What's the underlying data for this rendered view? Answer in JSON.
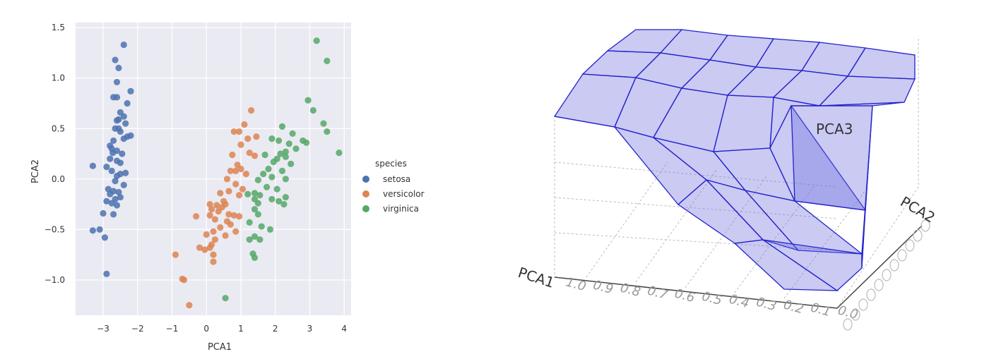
{
  "chart_data": [
    {
      "type": "scatter",
      "xlabel": "PCA1",
      "ylabel": "PCA2",
      "xlim": [
        -3.8,
        4.2
      ],
      "ylim": [
        -1.35,
        1.55
      ],
      "xticks": [
        -3,
        -2,
        -1,
        0,
        1,
        2,
        3,
        4
      ],
      "xtick_labels": [
        "−3",
        "−2",
        "−1",
        "0",
        "1",
        "2",
        "3",
        "4"
      ],
      "yticks": [
        -1.0,
        -0.5,
        0.0,
        0.5,
        1.0,
        1.5
      ],
      "ytick_labels": [
        "−1.0",
        "−0.5",
        "0.0",
        "0.5",
        "1.0",
        "1.5"
      ],
      "grid": true,
      "background": "#eaeaf2",
      "legend": {
        "title": "species",
        "placement": "right"
      },
      "series": [
        {
          "name": "setosa",
          "color": "#4c72b0",
          "points": [
            [
              -2.4,
              1.33
            ],
            [
              -2.65,
              1.18
            ],
            [
              -2.55,
              1.1
            ],
            [
              -2.6,
              0.96
            ],
            [
              -2.2,
              0.87
            ],
            [
              -2.7,
              0.81
            ],
            [
              -2.6,
              0.81
            ],
            [
              -2.3,
              0.75
            ],
            [
              -2.5,
              0.66
            ],
            [
              -2.4,
              0.62
            ],
            [
              -2.55,
              0.59
            ],
            [
              -2.6,
              0.58
            ],
            [
              -2.35,
              0.55
            ],
            [
              -2.65,
              0.5
            ],
            [
              -2.55,
              0.5
            ],
            [
              -2.5,
              0.47
            ],
            [
              -2.3,
              0.42
            ],
            [
              -2.2,
              0.43
            ],
            [
              -2.4,
              0.4
            ],
            [
              -2.7,
              0.38
            ],
            [
              -2.8,
              0.33
            ],
            [
              -2.75,
              0.3
            ],
            [
              -2.6,
              0.28
            ],
            [
              -2.72,
              0.26
            ],
            [
              -2.45,
              0.25
            ],
            [
              -2.8,
              0.2
            ],
            [
              -2.6,
              0.18
            ],
            [
              -2.5,
              0.16
            ],
            [
              -2.9,
              0.12
            ],
            [
              -3.3,
              0.13
            ],
            [
              -2.75,
              0.08
            ],
            [
              -2.35,
              0.06
            ],
            [
              -2.5,
              0.05
            ],
            [
              -2.6,
              0.03
            ],
            [
              -2.65,
              -0.02
            ],
            [
              -2.4,
              -0.06
            ],
            [
              -2.85,
              -0.1
            ],
            [
              -2.7,
              -0.12
            ],
            [
              -2.55,
              -0.13
            ],
            [
              -2.8,
              -0.15
            ],
            [
              -2.5,
              -0.18
            ],
            [
              -2.65,
              -0.2
            ],
            [
              -2.9,
              -0.22
            ],
            [
              -2.75,
              -0.24
            ],
            [
              -2.6,
              -0.26
            ],
            [
              -3.0,
              -0.34
            ],
            [
              -2.7,
              -0.35
            ],
            [
              -3.3,
              -0.51
            ],
            [
              -3.1,
              -0.5
            ],
            [
              -2.95,
              -0.58
            ],
            [
              -2.9,
              -0.94
            ]
          ]
        },
        {
          "name": "versicolor",
          "color": "#dd8452",
          "points": [
            [
              1.3,
              0.68
            ],
            [
              1.1,
              0.54
            ],
            [
              0.95,
              0.47
            ],
            [
              0.8,
              0.47
            ],
            [
              1.45,
              0.42
            ],
            [
              1.2,
              0.4
            ],
            [
              1.0,
              0.34
            ],
            [
              1.25,
              0.26
            ],
            [
              1.4,
              0.23
            ],
            [
              0.75,
              0.24
            ],
            [
              0.9,
              0.14
            ],
            [
              1.0,
              0.1
            ],
            [
              0.85,
              0.08
            ],
            [
              0.7,
              0.08
            ],
            [
              1.15,
              0.05
            ],
            [
              0.6,
              0.0
            ],
            [
              0.85,
              -0.05
            ],
            [
              1.05,
              -0.1
            ],
            [
              0.65,
              -0.12
            ],
            [
              0.4,
              -0.14
            ],
            [
              0.95,
              -0.16
            ],
            [
              0.5,
              -0.22
            ],
            [
              0.55,
              -0.25
            ],
            [
              0.1,
              -0.25
            ],
            [
              0.3,
              -0.26
            ],
            [
              0.15,
              -0.3
            ],
            [
              0.45,
              -0.28
            ],
            [
              0.35,
              -0.32
            ],
            [
              0.65,
              -0.35
            ],
            [
              0.8,
              -0.36
            ],
            [
              0.95,
              -0.37
            ],
            [
              0.1,
              -0.36
            ],
            [
              -0.3,
              -0.37
            ],
            [
              0.25,
              -0.4
            ],
            [
              0.6,
              -0.42
            ],
            [
              0.7,
              -0.45
            ],
            [
              0.4,
              -0.48
            ],
            [
              0.2,
              -0.52
            ],
            [
              0.0,
              -0.55
            ],
            [
              0.85,
              -0.52
            ],
            [
              0.55,
              -0.56
            ],
            [
              0.25,
              -0.6
            ],
            [
              0.15,
              -0.65
            ],
            [
              -0.2,
              -0.68
            ],
            [
              0.1,
              -0.68
            ],
            [
              -0.05,
              -0.7
            ],
            [
              0.2,
              -0.75
            ],
            [
              -0.9,
              -0.75
            ],
            [
              0.2,
              -0.82
            ],
            [
              -0.7,
              -0.99
            ],
            [
              -0.65,
              -1.0
            ],
            [
              -0.5,
              -1.25
            ]
          ]
        },
        {
          "name": "virginica",
          "color": "#55a868",
          "points": [
            [
              3.2,
              1.37
            ],
            [
              3.5,
              1.17
            ],
            [
              2.95,
              0.78
            ],
            [
              3.1,
              0.68
            ],
            [
              3.4,
              0.55
            ],
            [
              3.5,
              0.47
            ],
            [
              2.2,
              0.52
            ],
            [
              2.5,
              0.45
            ],
            [
              1.9,
              0.4
            ],
            [
              2.1,
              0.38
            ],
            [
              2.4,
              0.35
            ],
            [
              2.8,
              0.38
            ],
            [
              2.9,
              0.36
            ],
            [
              3.85,
              0.26
            ],
            [
              2.3,
              0.27
            ],
            [
              2.15,
              0.25
            ],
            [
              2.6,
              0.3
            ],
            [
              2.05,
              0.2
            ],
            [
              2.3,
              0.22
            ],
            [
              1.7,
              0.24
            ],
            [
              1.95,
              0.17
            ],
            [
              2.45,
              0.15
            ],
            [
              1.8,
              0.1
            ],
            [
              2.2,
              0.08
            ],
            [
              1.65,
              0.05
            ],
            [
              1.9,
              0.02
            ],
            [
              2.3,
              0.0
            ],
            [
              1.5,
              -0.01
            ],
            [
              1.75,
              -0.08
            ],
            [
              2.05,
              -0.1
            ],
            [
              1.4,
              -0.14
            ],
            [
              1.2,
              -0.15
            ],
            [
              1.55,
              -0.16
            ],
            [
              1.4,
              -0.2
            ],
            [
              2.3,
              -0.18
            ],
            [
              1.9,
              -0.2
            ],
            [
              2.1,
              -0.22
            ],
            [
              1.5,
              -0.24
            ],
            [
              2.25,
              -0.25
            ],
            [
              1.4,
              -0.3
            ],
            [
              1.5,
              -0.35
            ],
            [
              1.25,
              -0.43
            ],
            [
              1.6,
              -0.47
            ],
            [
              1.85,
              -0.5
            ],
            [
              1.4,
              -0.57
            ],
            [
              1.25,
              -0.6
            ],
            [
              1.55,
              -0.6
            ],
            [
              1.35,
              -0.74
            ],
            [
              1.4,
              -0.78
            ],
            [
              0.55,
              -1.18
            ]
          ]
        }
      ]
    },
    {
      "type": "surface3d",
      "xlabel": "PCA1",
      "ylabel": "PCA2",
      "zlabel": "PCA3",
      "xtick_labels": [
        "1.0",
        "0.9",
        "0.8",
        "0.7",
        "0.6",
        "0.5",
        "0.4",
        "0.3",
        "0.2",
        "0.1",
        "0.0"
      ],
      "surface_color": "#6666dd",
      "edge_color": "#2222cc"
    }
  ]
}
